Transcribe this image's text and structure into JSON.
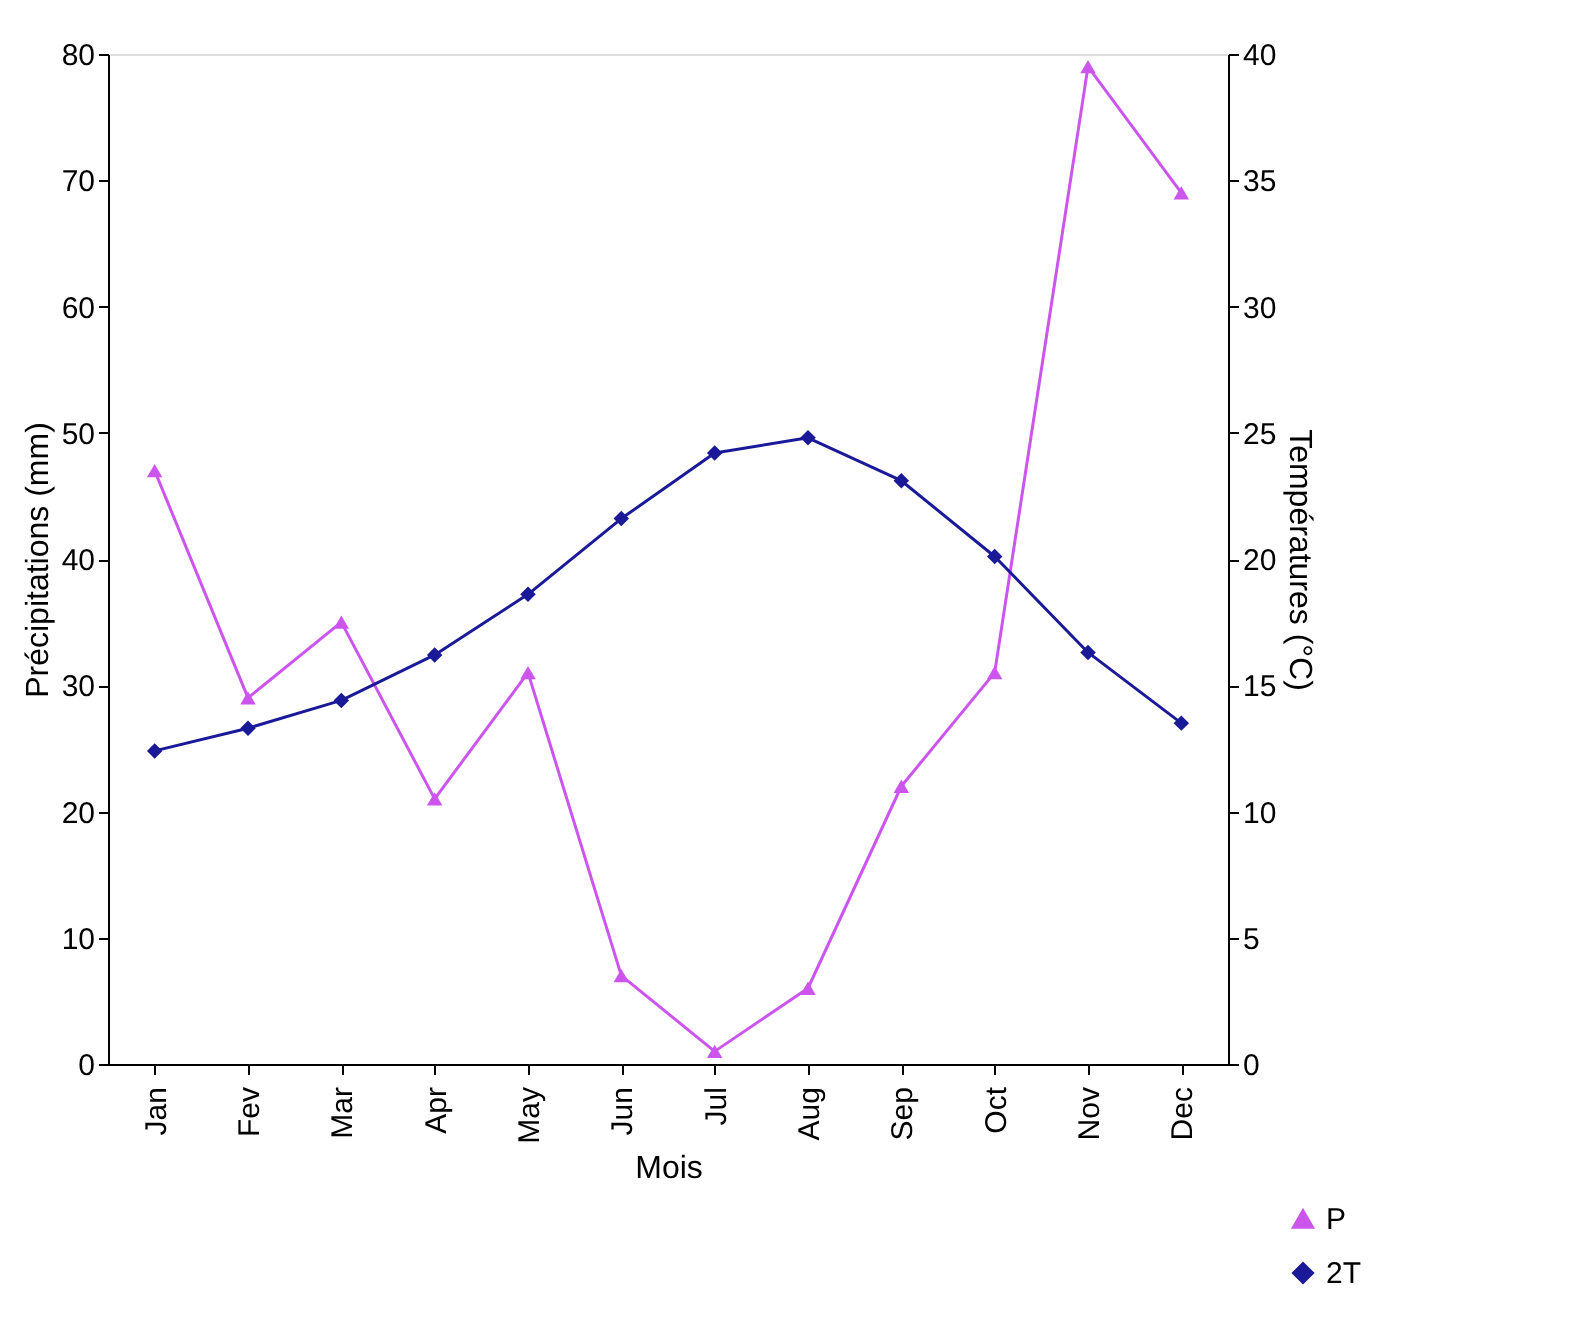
{
  "chart_data": {
    "type": "line",
    "xlabel": "Mois",
    "ylabel": "Précipitations (mm)",
    "y2label": "Températures (°C)",
    "categories": [
      "Jan",
      "Fev",
      "Mar",
      "Apr",
      "May",
      "Jun",
      "Jul",
      "Aug",
      "Sep",
      "Oct",
      "Nov",
      "Dec"
    ],
    "series": [
      {
        "name": "P",
        "color": "#cc55ee",
        "marker": "triangle",
        "values": [
          47,
          29,
          35,
          21,
          31,
          7,
          1,
          6,
          22,
          31,
          79,
          69
        ]
      },
      {
        "name": "2T",
        "color": "#1a1a99",
        "marker": "diamond",
        "axis": "y2",
        "values": [
          12.4,
          13.3,
          14.4,
          16.2,
          18.6,
          21.6,
          24.2,
          24.8,
          23.1,
          20.1,
          16.3,
          13.5
        ]
      }
    ],
    "ylim": [
      0,
      80
    ],
    "yticks": [
      0,
      10,
      20,
      30,
      40,
      50,
      60,
      70,
      80
    ],
    "y2lim": [
      0,
      40
    ],
    "y2ticks": [
      0,
      5,
      10,
      15,
      20,
      25,
      30,
      35,
      40
    ],
    "grid": false,
    "legend": "bottom right"
  }
}
